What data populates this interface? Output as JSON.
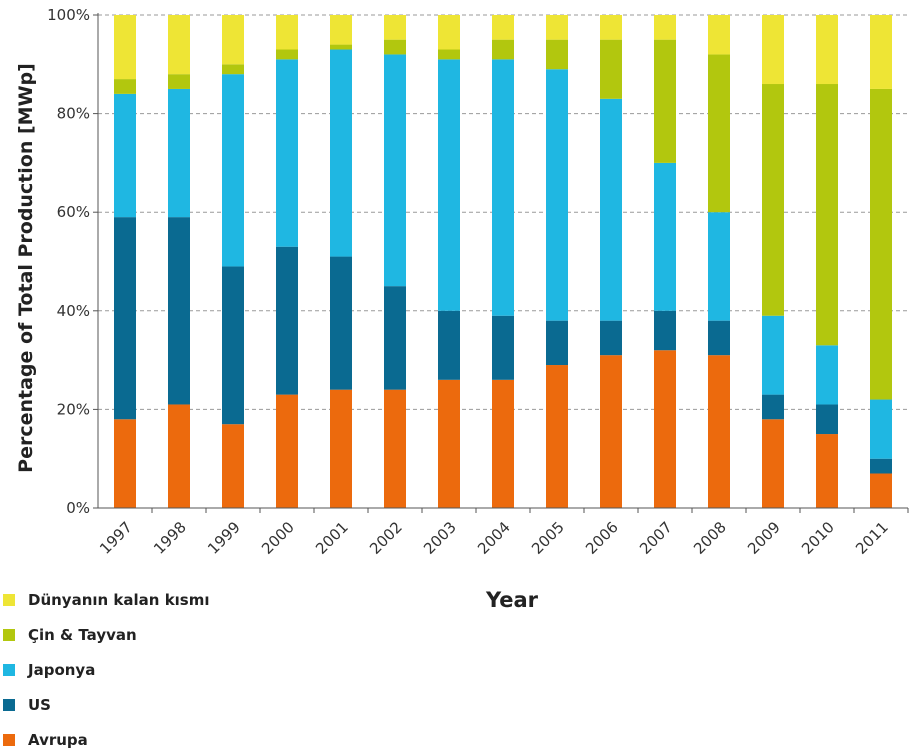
{
  "chart_data": {
    "type": "bar",
    "stacked": true,
    "title": "",
    "xlabel": "Year",
    "ylabel": "Percentage of Total Production [MWp]",
    "ylim": [
      0,
      100
    ],
    "yticks": [
      0,
      20,
      40,
      60,
      80,
      100
    ],
    "ytick_labels": [
      "0%",
      "20%",
      "40%",
      "60%",
      "80%",
      "100%"
    ],
    "grid": "horizontal dashed",
    "legend_position": "bottom-left",
    "categories": [
      "1997",
      "1998",
      "1999",
      "2000",
      "2001",
      "2002",
      "2003",
      "2004",
      "2005",
      "2006",
      "2007",
      "2008",
      "2009",
      "2010",
      "2011"
    ],
    "series": [
      {
        "name": "Avrupa",
        "color": "#ec6a0d",
        "values": [
          18,
          21,
          17,
          23,
          24,
          24,
          26,
          26,
          29,
          31,
          32,
          31,
          18,
          15,
          7
        ]
      },
      {
        "name": "US",
        "color": "#0a6a91",
        "values": [
          41,
          38,
          32,
          30,
          27,
          21,
          14,
          13,
          9,
          7,
          8,
          7,
          5,
          6,
          3
        ]
      },
      {
        "name": "Japonya",
        "color": "#1fb7e2",
        "values": [
          25,
          26,
          39,
          38,
          42,
          47,
          51,
          52,
          51,
          45,
          30,
          22,
          16,
          12,
          12
        ]
      },
      {
        "name": "Çin & Tayvan",
        "color": "#b2c70e",
        "values": [
          3,
          3,
          2,
          2,
          1,
          3,
          2,
          4,
          6,
          12,
          25,
          32,
          47,
          53,
          63
        ]
      },
      {
        "name": "Dünyanın  kalan kısmı",
        "color": "#eee535",
        "values": [
          13,
          12,
          10,
          7,
          6,
          5,
          7,
          5,
          5,
          5,
          5,
          8,
          14,
          14,
          15
        ]
      }
    ],
    "legend_order": [
      "Dünyanın  kalan kısmı",
      "Çin & Tayvan",
      "Japonya",
      "US",
      "Avrupa"
    ]
  }
}
